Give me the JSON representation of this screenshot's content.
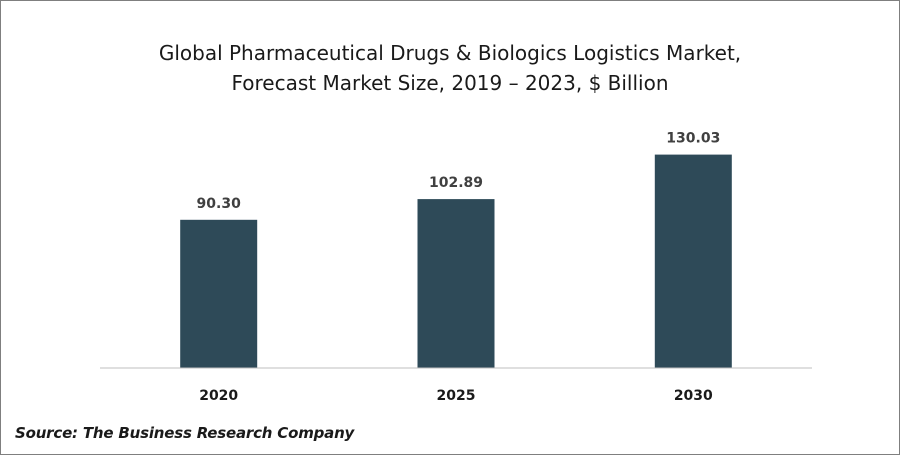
{
  "chart_data": {
    "type": "bar",
    "title": "Global Pharmaceutical Drugs & Biologics Logistics Market,",
    "subtitle": "Forecast Market Size, 2019 – 2023, $ Billion",
    "categories": [
      "2020",
      "2025",
      "2030"
    ],
    "values": [
      90.3,
      102.89,
      130.03
    ],
    "value_labels": [
      "90.30",
      "102.89",
      "130.03"
    ],
    "xlabel": "",
    "ylabel": "",
    "ylim": [
      0,
      145
    ],
    "grid": false,
    "legend": "none",
    "bar_color": "#2e4a58"
  },
  "source": "Source: The Business Research Company"
}
